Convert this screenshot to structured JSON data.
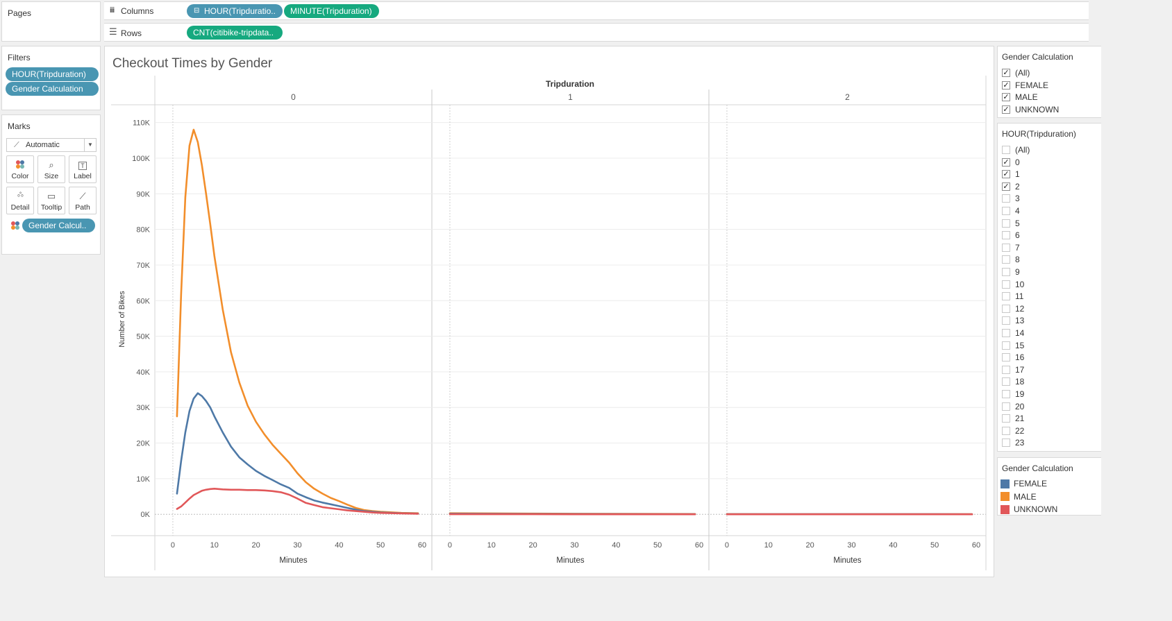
{
  "shelves": {
    "pages_label": "Pages",
    "columns_label": "Columns",
    "rows_label": "Rows",
    "columns_pills": [
      "HOUR(Tripduratio..",
      "MINUTE(Tripduration)"
    ],
    "rows_pills": [
      "CNT(citibike-tripdata.."
    ]
  },
  "filters": {
    "title": "Filters",
    "pills": [
      "HOUR(Tripduration)",
      "Gender Calculation"
    ]
  },
  "marks": {
    "title": "Marks",
    "type_label": "Automatic",
    "buttons": {
      "color": "Color",
      "size": "Size",
      "label": "Label",
      "detail": "Detail",
      "tooltip": "Tooltip",
      "path": "Path"
    },
    "color_pill": "Gender Calcul.."
  },
  "gender_filter": {
    "title": "Gender Calculation",
    "items": [
      {
        "label": "(All)",
        "checked": true
      },
      {
        "label": "FEMALE",
        "checked": true
      },
      {
        "label": "MALE",
        "checked": true
      },
      {
        "label": "UNKNOWN",
        "checked": true
      }
    ]
  },
  "hour_filter": {
    "title": "HOUR(Tripduration)",
    "items": [
      {
        "label": "(All)",
        "checked": false
      },
      {
        "label": "0",
        "checked": true
      },
      {
        "label": "1",
        "checked": true
      },
      {
        "label": "2",
        "checked": true
      },
      {
        "label": "3",
        "checked": false
      },
      {
        "label": "4",
        "checked": false
      },
      {
        "label": "5",
        "checked": false
      },
      {
        "label": "6",
        "checked": false
      },
      {
        "label": "7",
        "checked": false
      },
      {
        "label": "8",
        "checked": false
      },
      {
        "label": "9",
        "checked": false
      },
      {
        "label": "10",
        "checked": false
      },
      {
        "label": "11",
        "checked": false
      },
      {
        "label": "12",
        "checked": false
      },
      {
        "label": "13",
        "checked": false
      },
      {
        "label": "14",
        "checked": false
      },
      {
        "label": "15",
        "checked": false
      },
      {
        "label": "16",
        "checked": false
      },
      {
        "label": "17",
        "checked": false
      },
      {
        "label": "18",
        "checked": false
      },
      {
        "label": "19",
        "checked": false
      },
      {
        "label": "20",
        "checked": false
      },
      {
        "label": "21",
        "checked": false
      },
      {
        "label": "22",
        "checked": false
      },
      {
        "label": "23",
        "checked": false
      }
    ]
  },
  "legend": {
    "title": "Gender Calculation",
    "items": [
      {
        "label": "FEMALE",
        "color": "#4e79a7"
      },
      {
        "label": "MALE",
        "color": "#f28e2b"
      },
      {
        "label": "UNKNOWN",
        "color": "#e15759"
      }
    ]
  },
  "chart_data": {
    "type": "line",
    "title": "Checkout Times by Gender",
    "panel_header": "Tripduration",
    "panels": [
      "0",
      "1",
      "2"
    ],
    "xlabel": "Minutes",
    "ylabel": "Number of Bikes",
    "xlim": [
      -3,
      61
    ],
    "ylim": [
      -6000,
      115000
    ],
    "x_ticks": [
      0,
      10,
      20,
      30,
      40,
      50,
      60
    ],
    "y_ticks": [
      0,
      10000,
      20000,
      30000,
      40000,
      50000,
      60000,
      70000,
      80000,
      90000,
      100000,
      110000
    ],
    "y_tick_labels": [
      "0K",
      "10K",
      "20K",
      "30K",
      "40K",
      "50K",
      "60K",
      "70K",
      "80K",
      "90K",
      "100K",
      "110K"
    ],
    "grid": true,
    "series": [
      {
        "name": "MALE",
        "color": "#f28e2b",
        "panels": [
          {
            "x": [
              1,
              2,
              3,
              4,
              5,
              6,
              7,
              8,
              9,
              10,
              12,
              14,
              16,
              18,
              20,
              22,
              24,
              26,
              28,
              30,
              32,
              34,
              36,
              38,
              40,
              42,
              44,
              46,
              48,
              50,
              55,
              59
            ],
            "y": [
              27500,
              62000,
              89000,
              103500,
              108000,
              104500,
              98000,
              90000,
              81500,
              72500,
              57500,
              45500,
              37000,
              30500,
              26000,
              22500,
              19500,
              17000,
              14500,
              11500,
              9000,
              7200,
              5800,
              4600,
              3700,
              2700,
              1800,
              1200,
              900,
              700,
              400,
              300
            ]
          },
          {
            "x": [
              0,
              10,
              20,
              30,
              40,
              50,
              59
            ],
            "y": [
              300,
              250,
              200,
              150,
              120,
              100,
              80
            ]
          },
          {
            "x": [
              0,
              10,
              20,
              30,
              40,
              50,
              59
            ],
            "y": [
              60,
              50,
              45,
              40,
              35,
              30,
              25
            ]
          }
        ]
      },
      {
        "name": "FEMALE",
        "color": "#4e79a7",
        "panels": [
          {
            "x": [
              1,
              2,
              3,
              4,
              5,
              6,
              7,
              8,
              9,
              10,
              12,
              14,
              16,
              18,
              20,
              22,
              24,
              26,
              28,
              30,
              32,
              34,
              36,
              38,
              40,
              42,
              44,
              46,
              48,
              50,
              55,
              59
            ],
            "y": [
              5800,
              15000,
              23000,
              29000,
              32500,
              34000,
              33200,
              31800,
              30000,
              27500,
              23000,
              19000,
              16000,
              14000,
              12200,
              10800,
              9600,
              8400,
              7400,
              5800,
              4800,
              3900,
              3300,
              2800,
              2300,
              1800,
              1300,
              900,
              700,
              500,
              300,
              200
            ]
          },
          {
            "x": [
              0,
              10,
              20,
              30,
              40,
              50,
              59
            ],
            "y": [
              150,
              120,
              100,
              80,
              60,
              50,
              40
            ]
          },
          {
            "x": [
              0,
              10,
              20,
              30,
              40,
              50,
              59
            ],
            "y": [
              30,
              25,
              20,
              18,
              15,
              12,
              10
            ]
          }
        ]
      },
      {
        "name": "UNKNOWN",
        "color": "#e15759",
        "panels": [
          {
            "x": [
              1,
              2,
              3,
              4,
              5,
              6,
              7,
              8,
              9,
              10,
              12,
              14,
              16,
              18,
              20,
              22,
              24,
              26,
              28,
              30,
              32,
              34,
              36,
              38,
              40,
              42,
              44,
              46,
              48,
              50,
              55,
              59
            ],
            "y": [
              1500,
              2200,
              3300,
              4400,
              5400,
              6000,
              6600,
              6900,
              7100,
              7200,
              7000,
              6900,
              6900,
              6800,
              6800,
              6700,
              6500,
              6200,
              5500,
              4400,
              3200,
              2600,
              2000,
              1700,
              1400,
              1100,
              900,
              700,
              500,
              400,
              250,
              150
            ]
          },
          {
            "x": [
              0,
              10,
              20,
              30,
              40,
              50,
              59
            ],
            "y": [
              20,
              15,
              12,
              10,
              8,
              6,
              5
            ]
          },
          {
            "x": [
              0,
              10,
              20,
              30,
              40,
              50,
              59
            ],
            "y": [
              5,
              4,
              3,
              3,
              2,
              2,
              2
            ]
          }
        ]
      }
    ]
  }
}
